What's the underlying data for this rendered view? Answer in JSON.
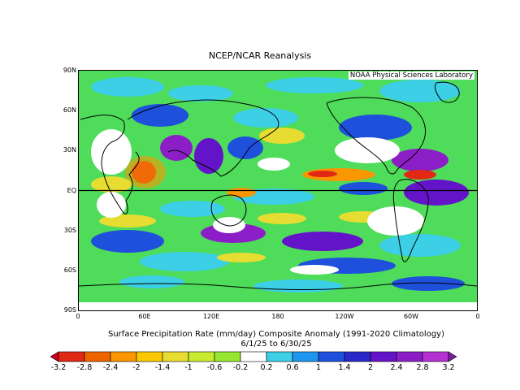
{
  "header": {
    "title": "NCEP/NCAR Reanalysis",
    "credit": "NOAA Physical Sciences Laboratory"
  },
  "axes": {
    "lat_labels": [
      "90N",
      "60N",
      "30N",
      "EQ",
      "30S",
      "60S",
      "90S"
    ],
    "lat_values": [
      90,
      60,
      30,
      0,
      -30,
      -60,
      -90
    ],
    "lon_labels": [
      "0",
      "60E",
      "120E",
      "180",
      "120W",
      "60W",
      "0"
    ],
    "lon_values": [
      0,
      60,
      120,
      180,
      240,
      300,
      360
    ]
  },
  "caption": {
    "line1": "Surface Precipitation Rate (mm/day) Composite Anomaly (1991-2020 Climatology)",
    "line2": "6/1/25  to 6/30/25"
  },
  "colorbar": {
    "labels": [
      "-3.2",
      "-2.8",
      "-2.4",
      "-2",
      "-1.4",
      "-1",
      "-0.6",
      "-0.2",
      "0.2",
      "0.6",
      "1",
      "1.4",
      "2",
      "2.4",
      "2.8",
      "3.2"
    ],
    "colors": [
      "#c8001e",
      "#e02814",
      "#f06400",
      "#fa9600",
      "#fac800",
      "#e6dc32",
      "#c8eb32",
      "#96e632",
      "#ffffff",
      "#3ccfe6",
      "#1e96f0",
      "#1e50dc",
      "#2828c8",
      "#6414c8",
      "#8c1ec8",
      "#b432d2",
      "#7a1ea0"
    ]
  },
  "map": {
    "colors": {
      "green": "#4fdc5a",
      "yellow": "#e6dc32",
      "orange": "#fa9600",
      "red": "#e02814",
      "cyan": "#3ccfe6",
      "blue": "#1e50dc",
      "purple": "#8c1ec8",
      "white": "#ffffff",
      "coast": "#000000"
    }
  }
}
